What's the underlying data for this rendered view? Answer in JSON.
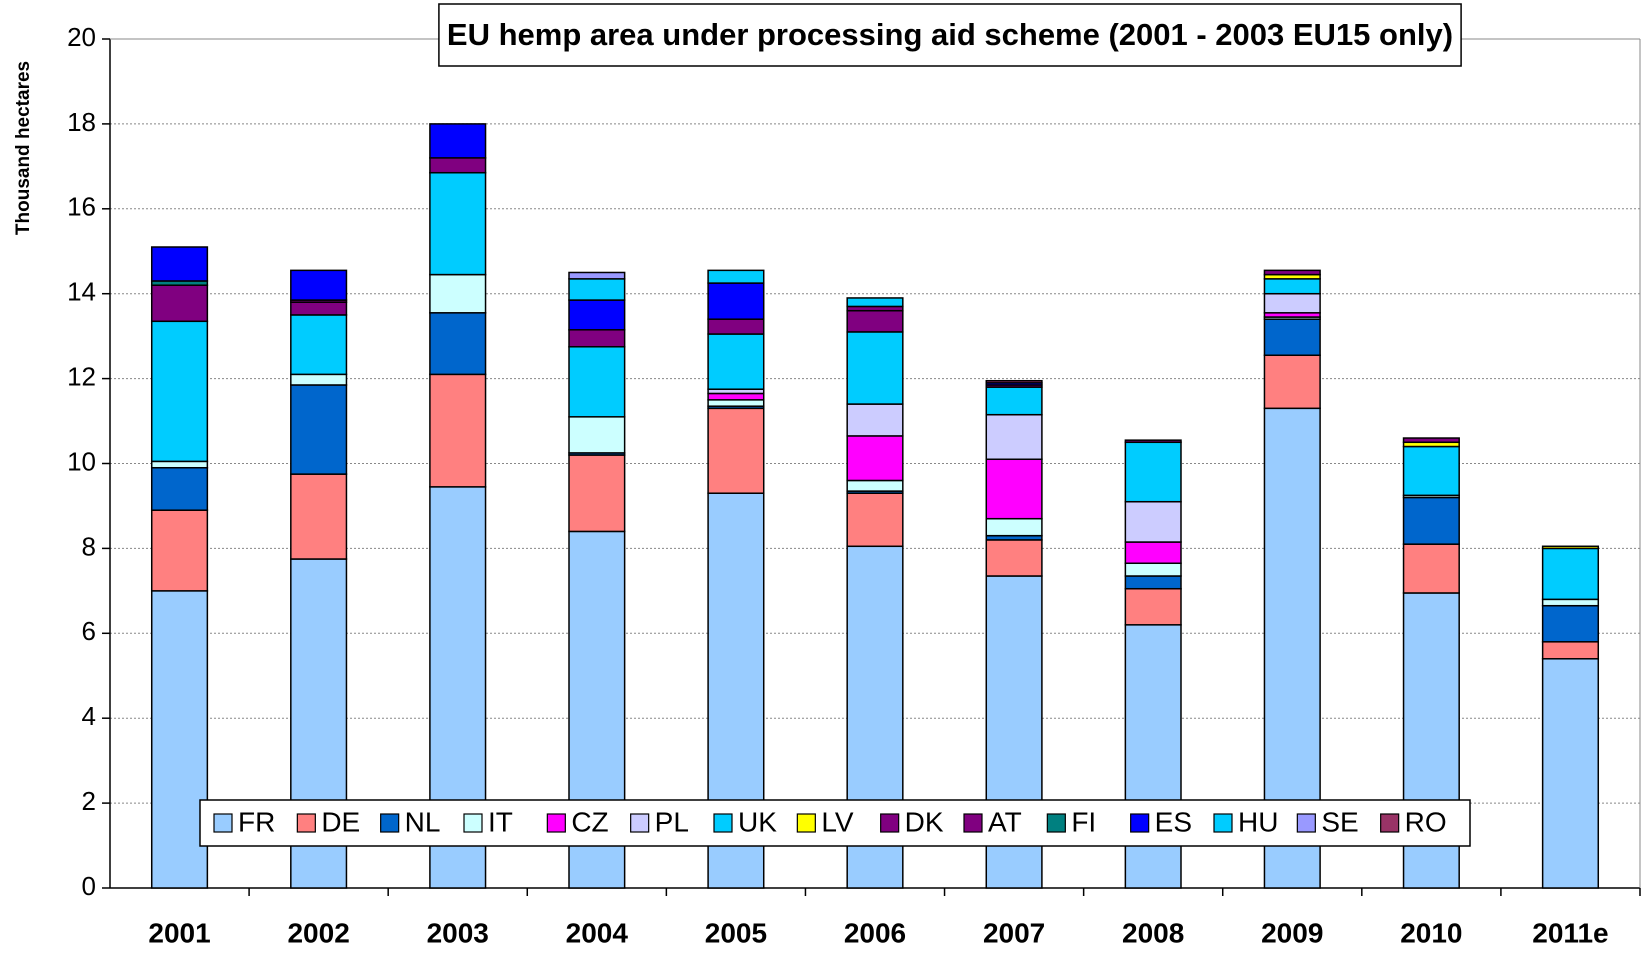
{
  "chart_data": {
    "type": "stacked_bar",
    "title": "EU hemp area under processing aid scheme (2001 - 2003 EU15 only)",
    "y_label": "Thousand hectares",
    "categories": [
      "2001",
      "2002",
      "2003",
      "2004",
      "2005",
      "2006",
      "2007",
      "2008",
      "2009",
      "2010",
      "2011e"
    ],
    "ylim": [
      0,
      20
    ],
    "yticks": [
      0,
      2,
      4,
      6,
      8,
      10,
      12,
      14,
      16,
      18,
      20
    ],
    "grid": true,
    "series": [
      {
        "name": "FR",
        "color": "#99ccff",
        "values": [
          7.0,
          7.75,
          9.45,
          8.4,
          9.3,
          8.05,
          7.35,
          6.2,
          11.3,
          6.95,
          5.4
        ]
      },
      {
        "name": "DE",
        "color": "#ff8080",
        "values": [
          1.9,
          2.0,
          2.65,
          1.8,
          2.0,
          1.25,
          0.85,
          0.85,
          1.25,
          1.15,
          0.4
        ]
      },
      {
        "name": "NL",
        "color": "#0066cc",
        "values": [
          1.0,
          2.1,
          1.45,
          0.05,
          0.05,
          0.05,
          0.1,
          0.3,
          0.85,
          1.1,
          0.85
        ]
      },
      {
        "name": "IT",
        "color": "#ccffff",
        "values": [
          0.15,
          0.25,
          0.9,
          0.85,
          0.15,
          0.25,
          0.4,
          0.3,
          0.05,
          0.05,
          0.15
        ]
      },
      {
        "name": "CZ",
        "color": "#ff00ff",
        "values": [
          0,
          0,
          0,
          0,
          0.15,
          1.05,
          1.4,
          0.5,
          0.1,
          0,
          0
        ]
      },
      {
        "name": "PL",
        "color": "#ccccff",
        "values": [
          0,
          0,
          0,
          0,
          0.1,
          0.75,
          1.05,
          0.95,
          0.45,
          0,
          0
        ]
      },
      {
        "name": "UK",
        "color": "#00ccff",
        "values": [
          3.3,
          1.4,
          2.4,
          1.65,
          1.3,
          1.7,
          0.65,
          1.4,
          0.35,
          1.15,
          1.2
        ]
      },
      {
        "name": "LV",
        "color": "#ffff00",
        "values": [
          0,
          0,
          0,
          0,
          0,
          0,
          0,
          0,
          0.1,
          0.1,
          0.05
        ]
      },
      {
        "name": "DK",
        "color": "#800080",
        "values": [
          0.85,
          0.3,
          0.35,
          0.4,
          0.35,
          0.5,
          0.05,
          0.05,
          0.1,
          0.1,
          0
        ]
      },
      {
        "name": "AT",
        "color": "#800080",
        "values": [
          0,
          0.05,
          0,
          0,
          0,
          0.1,
          0,
          0,
          0,
          0,
          0
        ]
      },
      {
        "name": "FI",
        "color": "#008080",
        "values": [
          0.1,
          0,
          0,
          0,
          0,
          0,
          0,
          0,
          0,
          0,
          0
        ]
      },
      {
        "name": "ES",
        "color": "#0000ff",
        "values": [
          0.8,
          0.7,
          0.8,
          0.7,
          0.85,
          0,
          0.05,
          0,
          0,
          0,
          0
        ]
      },
      {
        "name": "HU",
        "color": "#00ccff",
        "values": [
          0,
          0,
          0,
          0.5,
          0.3,
          0.2,
          0,
          0,
          0,
          0,
          0
        ]
      },
      {
        "name": "SE",
        "color": "#9999ff",
        "values": [
          0,
          0,
          0,
          0.15,
          0,
          0,
          0,
          0,
          0,
          0,
          0
        ]
      },
      {
        "name": "RO",
        "color": "#993366",
        "values": [
          0,
          0,
          0,
          0,
          0,
          0,
          0.05,
          0,
          0,
          0,
          0
        ]
      }
    ]
  }
}
